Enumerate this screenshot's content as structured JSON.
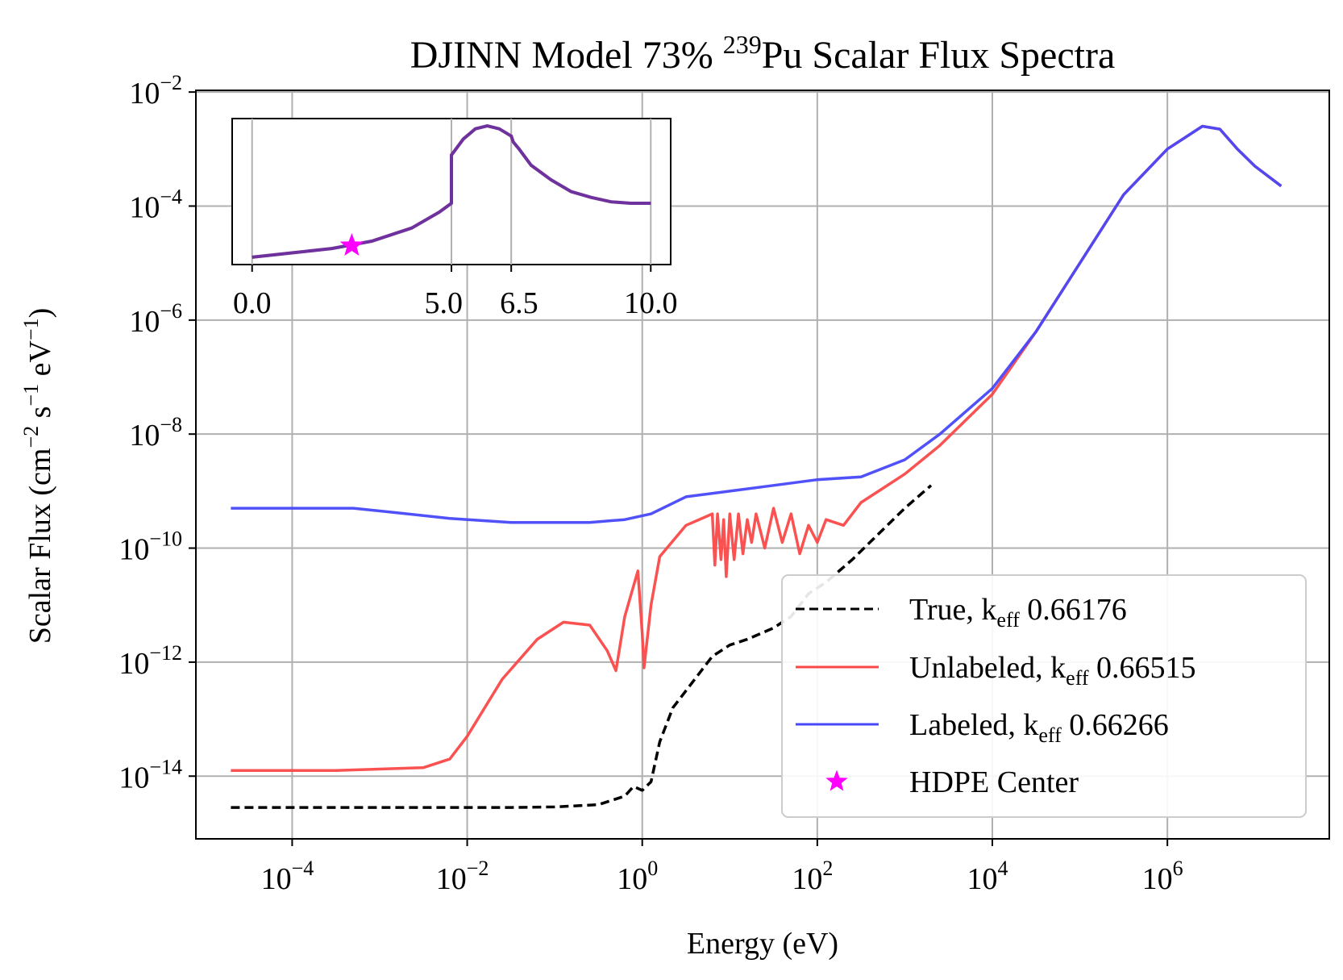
{
  "chart_data": {
    "type": "line",
    "title": {
      "main": "DJINN Model 73% ",
      "sup": "239",
      "tail": "Pu Scalar Flux Spectra"
    },
    "xlabel": "Energy (eV)",
    "ylabel": {
      "p1": "Scalar Flux (cm",
      "s1": "−2",
      "p2": " s",
      "s2": "−1",
      "p3": " eV",
      "s3": "−1",
      "p4": ")"
    },
    "xscale": "log",
    "yscale": "log",
    "xlim_log10": [
      -5.1,
      7.85
    ],
    "ylim_log10": [
      -15.1,
      -1.97
    ],
    "x_ticks": [
      {
        "base": "10",
        "exp": "−4",
        "log": -4
      },
      {
        "base": "10",
        "exp": "−2",
        "log": -2
      },
      {
        "base": "10",
        "exp": "0",
        "log": 0
      },
      {
        "base": "10",
        "exp": "2",
        "log": 2
      },
      {
        "base": "10",
        "exp": "4",
        "log": 4
      },
      {
        "base": "10",
        "exp": "6",
        "log": 6
      }
    ],
    "y_ticks": [
      {
        "base": "10",
        "exp": "−2",
        "log": -2
      },
      {
        "base": "10",
        "exp": "−4",
        "log": -4
      },
      {
        "base": "10",
        "exp": "−6",
        "log": -6
      },
      {
        "base": "10",
        "exp": "−8",
        "log": -8
      },
      {
        "base": "10",
        "exp": "−10",
        "log": -10
      },
      {
        "base": "10",
        "exp": "−12",
        "log": -12
      },
      {
        "base": "10",
        "exp": "−14",
        "log": -14
      }
    ],
    "grid": true,
    "legend_position": "lower-right",
    "series": [
      {
        "name": "True",
        "legend": {
          "pre": "True, k",
          "sub": "eff",
          "post": " 0.66176"
        },
        "color": "#000000",
        "style": "dashed",
        "points_log10": [
          [
            -4.7,
            -14.55
          ],
          [
            -3,
            -14.55
          ],
          [
            -1.5,
            -14.55
          ],
          [
            -1,
            -14.54
          ],
          [
            -0.5,
            -14.5
          ],
          [
            -0.2,
            -14.35
          ],
          [
            -0.1,
            -14.18
          ],
          [
            0,
            -14.25
          ],
          [
            0.1,
            -14.1
          ],
          [
            0.2,
            -13.4
          ],
          [
            0.35,
            -12.8
          ],
          [
            0.6,
            -12.3
          ],
          [
            0.8,
            -11.9
          ],
          [
            1,
            -11.7
          ],
          [
            1.2,
            -11.6
          ],
          [
            1.5,
            -11.4
          ],
          [
            1.7,
            -11.2
          ],
          [
            1.9,
            -10.8
          ],
          [
            2.1,
            -10.6
          ],
          [
            2.4,
            -10.2
          ],
          [
            2.7,
            -9.75
          ],
          [
            3,
            -9.3
          ],
          [
            3.3,
            -8.9
          ]
        ]
      },
      {
        "name": "Unlabeled",
        "legend": {
          "pre": "Unlabeled, k",
          "sub": "eff",
          "post": " 0.66515"
        },
        "color": "#fa4848",
        "style": "solid",
        "points_log10": [
          [
            -4.7,
            -13.9
          ],
          [
            -3.5,
            -13.9
          ],
          [
            -2.5,
            -13.85
          ],
          [
            -2.2,
            -13.7
          ],
          [
            -2,
            -13.3
          ],
          [
            -1.6,
            -12.3
          ],
          [
            -1.2,
            -11.6
          ],
          [
            -0.9,
            -11.3
          ],
          [
            -0.6,
            -11.35
          ],
          [
            -0.4,
            -11.8
          ],
          [
            -0.3,
            -12.15
          ],
          [
            -0.2,
            -11.2
          ],
          [
            -0.05,
            -10.4
          ],
          [
            0,
            -11.5
          ],
          [
            0.02,
            -12.1
          ],
          [
            0.1,
            -11.0
          ],
          [
            0.2,
            -10.15
          ],
          [
            0.5,
            -9.6
          ],
          [
            0.8,
            -9.4
          ],
          [
            0.83,
            -10.3
          ],
          [
            0.86,
            -9.4
          ],
          [
            0.9,
            -10.2
          ],
          [
            0.93,
            -9.5
          ],
          [
            0.96,
            -10.5
          ],
          [
            1.0,
            -9.4
          ],
          [
            1.05,
            -10.2
          ],
          [
            1.1,
            -9.4
          ],
          [
            1.15,
            -10.1
          ],
          [
            1.2,
            -9.5
          ],
          [
            1.25,
            -9.9
          ],
          [
            1.3,
            -9.4
          ],
          [
            1.4,
            -10.0
          ],
          [
            1.5,
            -9.3
          ],
          [
            1.6,
            -9.9
          ],
          [
            1.7,
            -9.4
          ],
          [
            1.8,
            -10.1
          ],
          [
            1.9,
            -9.6
          ],
          [
            2.0,
            -9.9
          ],
          [
            2.1,
            -9.5
          ],
          [
            2.3,
            -9.6
          ],
          [
            2.5,
            -9.2
          ],
          [
            2.7,
            -9.0
          ],
          [
            3.0,
            -8.7
          ],
          [
            3.4,
            -8.2
          ],
          [
            4.0,
            -7.3
          ],
          [
            4.5,
            -6.2
          ],
          [
            5.0,
            -5.0
          ],
          [
            5.5,
            -3.8
          ],
          [
            6.0,
            -3.0
          ],
          [
            6.4,
            -2.6
          ],
          [
            6.6,
            -2.65
          ],
          [
            6.8,
            -3.0
          ],
          [
            7.0,
            -3.3
          ],
          [
            7.3,
            -3.65
          ]
        ]
      },
      {
        "name": "Labeled",
        "legend": {
          "pre": "Labeled, k",
          "sub": "eff",
          "post": " 0.66266"
        },
        "color": "#4848fa",
        "style": "solid",
        "points_log10": [
          [
            -4.7,
            -9.3
          ],
          [
            -4.0,
            -9.3
          ],
          [
            -3.3,
            -9.3
          ],
          [
            -2.8,
            -9.38
          ],
          [
            -2.2,
            -9.48
          ],
          [
            -1.5,
            -9.55
          ],
          [
            -0.6,
            -9.55
          ],
          [
            -0.2,
            -9.5
          ],
          [
            0.1,
            -9.4
          ],
          [
            0.5,
            -9.1
          ],
          [
            1.0,
            -9.0
          ],
          [
            1.5,
            -8.9
          ],
          [
            2.0,
            -8.8
          ],
          [
            2.5,
            -8.75
          ],
          [
            3.0,
            -8.45
          ],
          [
            3.4,
            -8.0
          ],
          [
            4.0,
            -7.2
          ],
          [
            4.5,
            -6.2
          ],
          [
            5.0,
            -5.0
          ],
          [
            5.5,
            -3.8
          ],
          [
            6.0,
            -3.0
          ],
          [
            6.4,
            -2.6
          ],
          [
            6.6,
            -2.65
          ],
          [
            6.8,
            -3.0
          ],
          [
            7.0,
            -3.3
          ],
          [
            7.3,
            -3.65
          ]
        ]
      },
      {
        "name": "HDPE Center",
        "legend": {
          "pre": "HDPE Center",
          "sub": "",
          "post": ""
        },
        "color": "#ff00ff",
        "style": "marker-star"
      }
    ],
    "inset": {
      "xlim": [
        -0.5,
        10.5
      ],
      "x_ticks": [
        "0.0",
        "5.0",
        "6.5",
        "10.0"
      ],
      "x_tick_values": [
        0,
        5,
        6.5,
        10
      ],
      "curve_color": "#6e329e",
      "marker": {
        "label": "HDPE Center",
        "x": 2.5,
        "y": 0.13,
        "color": "#ff00ff"
      },
      "points": [
        [
          0,
          0.05
        ],
        [
          1,
          0.08
        ],
        [
          2,
          0.11
        ],
        [
          3,
          0.16
        ],
        [
          4,
          0.25
        ],
        [
          4.7,
          0.36
        ],
        [
          5.0,
          0.42
        ],
        [
          5.0,
          0.75
        ],
        [
          5.3,
          0.86
        ],
        [
          5.6,
          0.93
        ],
        [
          5.9,
          0.95
        ],
        [
          6.2,
          0.93
        ],
        [
          6.5,
          0.88
        ],
        [
          6.55,
          0.84
        ],
        [
          6.7,
          0.79
        ],
        [
          7,
          0.68
        ],
        [
          7.5,
          0.58
        ],
        [
          8,
          0.5
        ],
        [
          8.5,
          0.46
        ],
        [
          9,
          0.43
        ],
        [
          9.5,
          0.42
        ],
        [
          10,
          0.42
        ]
      ],
      "y_unit": "normalized (no axis shown)"
    }
  }
}
